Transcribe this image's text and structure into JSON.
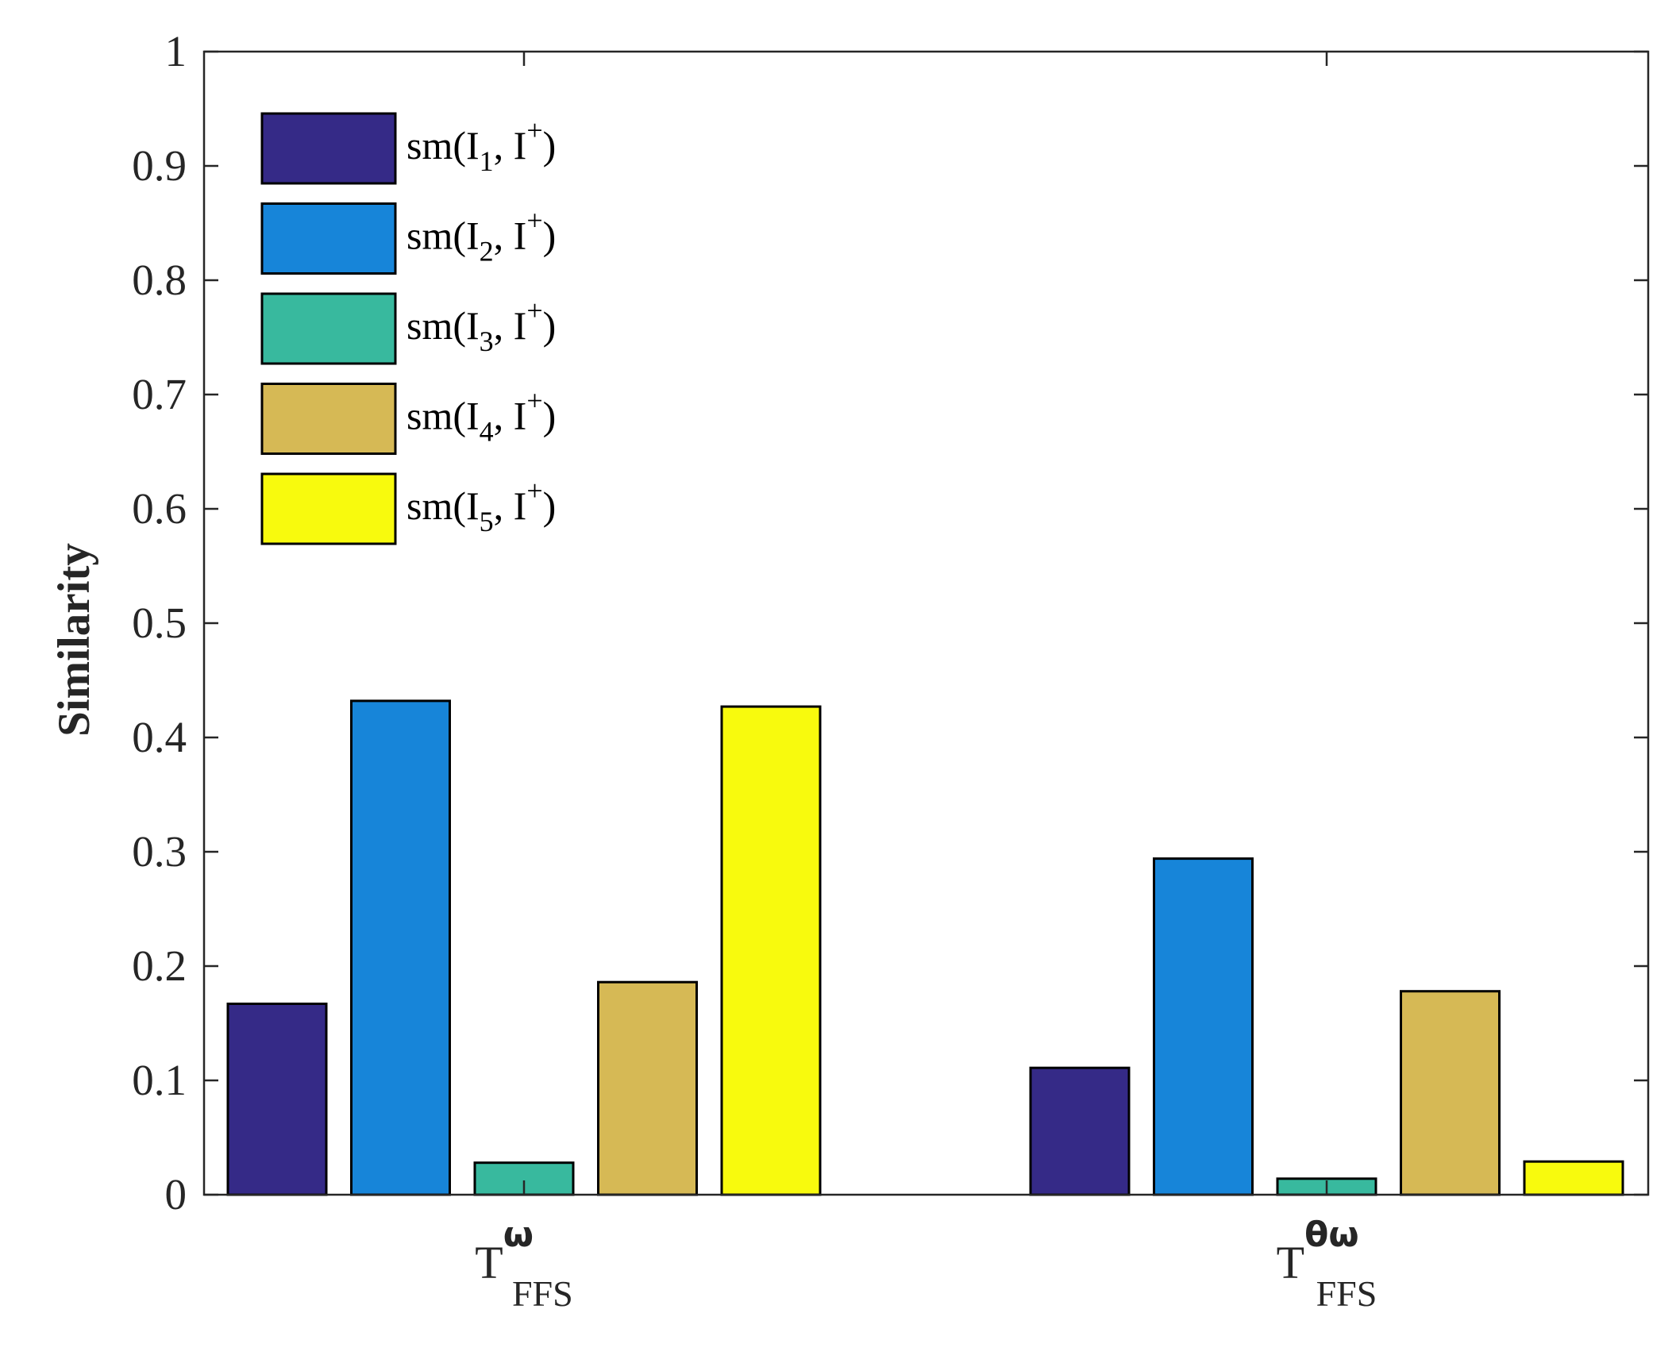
{
  "chart_data": {
    "type": "bar",
    "title": "",
    "xlabel": "",
    "ylabel": "Similarity",
    "ylim": [
      0,
      1
    ],
    "yticks": [
      0,
      0.1,
      0.2,
      0.3,
      0.4,
      0.5,
      0.6,
      0.7,
      0.8,
      0.9,
      1
    ],
    "ytick_labels": [
      "0",
      "0.1",
      "0.2",
      "0.3",
      "0.4",
      "0.5",
      "0.6",
      "0.7",
      "0.8",
      "0.9",
      "1"
    ],
    "categories": [
      {
        "base": "T",
        "sup": "ω",
        "sub": "FFS"
      },
      {
        "base": "T",
        "sup": "θω",
        "sub": "FFS"
      }
    ],
    "series": [
      {
        "name": "sm(I1, I+)",
        "legend": {
          "pre": "sm(I",
          "sub": "1",
          "mid": ", I",
          "sup": "+",
          "post": ")"
        },
        "color": "#352A87",
        "values": [
          0.167,
          0.111
        ]
      },
      {
        "name": "sm(I2, I+)",
        "legend": {
          "pre": "sm(I",
          "sub": "2",
          "mid": ", I",
          "sup": "+",
          "post": ")"
        },
        "color": "#1785D9",
        "values": [
          0.432,
          0.294
        ]
      },
      {
        "name": "sm(I3, I+)",
        "legend": {
          "pre": "sm(I",
          "sub": "3",
          "mid": ", I",
          "sup": "+",
          "post": ")"
        },
        "color": "#38B99E",
        "values": [
          0.028,
          0.014
        ]
      },
      {
        "name": "sm(I4, I+)",
        "legend": {
          "pre": "sm(I",
          "sub": "4",
          "mid": ", I",
          "sup": "+",
          "post": ")"
        },
        "color": "#D6B955",
        "values": [
          0.186,
          0.178
        ]
      },
      {
        "name": "sm(I5, I+)",
        "legend": {
          "pre": "sm(I",
          "sub": "5",
          "mid": ", I",
          "sup": "+",
          "post": ")"
        },
        "color": "#F8FA0D",
        "values": [
          0.427,
          0.029
        ]
      }
    ],
    "legend_position": "top-left",
    "grid": false
  }
}
